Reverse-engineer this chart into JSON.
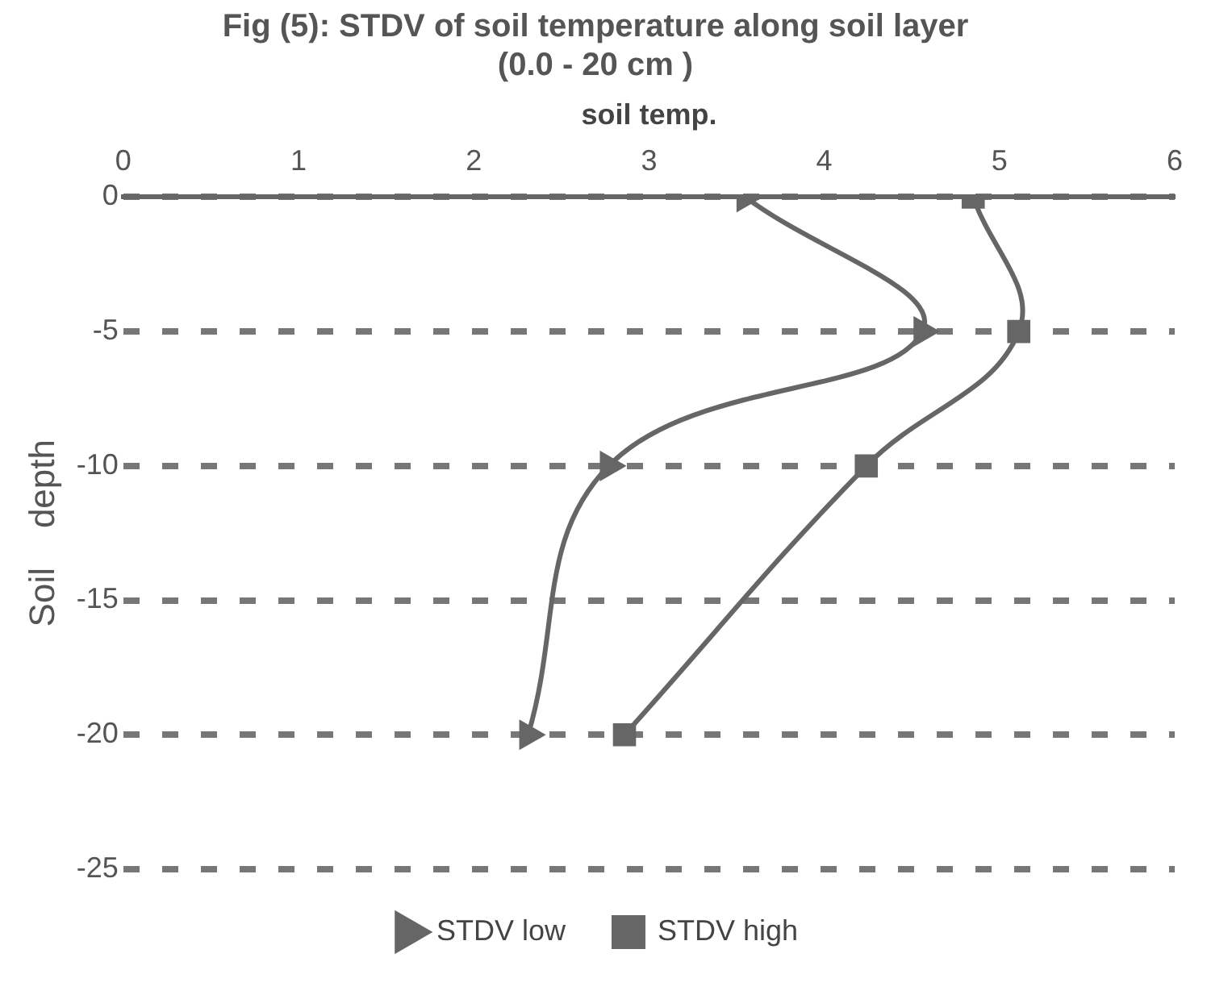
{
  "chart_data": {
    "type": "line",
    "title": "Fig (5): STDV of soil temperature along soil layer (0.0 - 20 cm )",
    "xlabel": "soil temp.",
    "ylabel": "Soil    depth",
    "series": [
      {
        "name": "STDV low",
        "color": "#666666",
        "marker": "triangle",
        "x": [
          3.55,
          4.56,
          2.77,
          2.31
        ],
        "values": [
          0,
          -5,
          -10,
          -20
        ]
      },
      {
        "name": "STDV high",
        "color": "#666666",
        "marker": "square",
        "x": [
          4.85,
          5.11,
          4.24,
          2.86
        ],
        "values": [
          0,
          -5,
          -10,
          -20
        ]
      }
    ],
    "xlim": [
      0,
      6
    ],
    "xticks": [
      0,
      1,
      2,
      3,
      4,
      5,
      6
    ],
    "ylim": [
      -25,
      0
    ],
    "yticks": [
      0,
      -5,
      -10,
      -15,
      -20,
      -25
    ],
    "grid": "y",
    "line_style": "solid",
    "legend": "bottom"
  }
}
